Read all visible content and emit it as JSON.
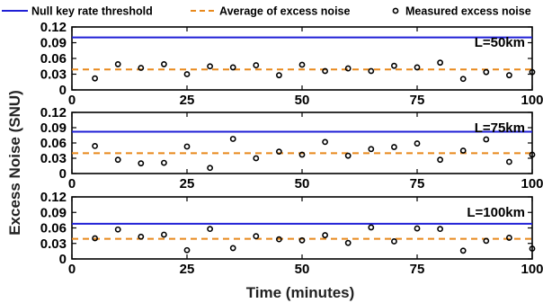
{
  "colors": {
    "threshold": "#1f1fd6",
    "average": "#e8891c",
    "point": "#000000",
    "frame": "#000000"
  },
  "chart_data": {
    "type": "scatter",
    "legend": {
      "placement": "top",
      "items": [
        {
          "label": "Null key rate threshold",
          "style": "solid-line",
          "color": "#1f1fd6"
        },
        {
          "label": "Average of excess noise",
          "style": "dashed-line",
          "color": "#e8891c"
        },
        {
          "label": "Measured excess noise",
          "style": "circle-marker",
          "color": "#000000"
        }
      ]
    },
    "xlabel": "Time (minutes)",
    "ylabel": "Excess Noise (SNU)",
    "xlim": [
      0,
      100
    ],
    "xticks": [
      0,
      25,
      50,
      75,
      100
    ],
    "panels": [
      {
        "label": "L=50km",
        "ylim": [
          0,
          0.12
        ],
        "yticks": [
          "0",
          "0.03",
          "0.06",
          "0.09",
          "0.12"
        ],
        "yticks_values": [
          0,
          0.03,
          0.06,
          0.09,
          0.12
        ],
        "threshold": 0.1,
        "average": 0.039,
        "points": [
          {
            "x": 5,
            "y": 0.022
          },
          {
            "x": 10,
            "y": 0.049
          },
          {
            "x": 15,
            "y": 0.042
          },
          {
            "x": 20,
            "y": 0.049
          },
          {
            "x": 25,
            "y": 0.03
          },
          {
            "x": 30,
            "y": 0.045
          },
          {
            "x": 35,
            "y": 0.043
          },
          {
            "x": 40,
            "y": 0.047
          },
          {
            "x": 45,
            "y": 0.028
          },
          {
            "x": 50,
            "y": 0.048
          },
          {
            "x": 55,
            "y": 0.036
          },
          {
            "x": 60,
            "y": 0.041
          },
          {
            "x": 65,
            "y": 0.036
          },
          {
            "x": 70,
            "y": 0.046
          },
          {
            "x": 75,
            "y": 0.043
          },
          {
            "x": 80,
            "y": 0.052
          },
          {
            "x": 85,
            "y": 0.021
          },
          {
            "x": 90,
            "y": 0.034
          },
          {
            "x": 95,
            "y": 0.028
          },
          {
            "x": 100,
            "y": 0.034
          }
        ]
      },
      {
        "label": "L=75km",
        "ylim": [
          0,
          0.12
        ],
        "yticks": [
          "0",
          "0.03",
          "0.06",
          "0.09",
          "0.12"
        ],
        "yticks_values": [
          0,
          0.03,
          0.06,
          0.09,
          0.12
        ],
        "threshold": 0.082,
        "average": 0.04,
        "points": [
          {
            "x": 5,
            "y": 0.054
          },
          {
            "x": 10,
            "y": 0.027
          },
          {
            "x": 15,
            "y": 0.02
          },
          {
            "x": 20,
            "y": 0.021
          },
          {
            "x": 25,
            "y": 0.053
          },
          {
            "x": 30,
            "y": 0.011
          },
          {
            "x": 35,
            "y": 0.068
          },
          {
            "x": 40,
            "y": 0.03
          },
          {
            "x": 45,
            "y": 0.043
          },
          {
            "x": 50,
            "y": 0.037
          },
          {
            "x": 55,
            "y": 0.062
          },
          {
            "x": 60,
            "y": 0.035
          },
          {
            "x": 65,
            "y": 0.048
          },
          {
            "x": 70,
            "y": 0.052
          },
          {
            "x": 75,
            "y": 0.059
          },
          {
            "x": 80,
            "y": 0.027
          },
          {
            "x": 85,
            "y": 0.045
          },
          {
            "x": 90,
            "y": 0.067
          },
          {
            "x": 95,
            "y": 0.023
          },
          {
            "x": 100,
            "y": 0.037
          }
        ]
      },
      {
        "label": "L=100km",
        "ylim": [
          0,
          0.12
        ],
        "yticks": [
          "0",
          "0.03",
          "0.06",
          "0.09",
          "0.12"
        ],
        "yticks_values": [
          0,
          0.03,
          0.06,
          0.09,
          0.12
        ],
        "threshold": 0.068,
        "average": 0.039,
        "points": [
          {
            "x": 5,
            "y": 0.04
          },
          {
            "x": 10,
            "y": 0.057
          },
          {
            "x": 15,
            "y": 0.043
          },
          {
            "x": 20,
            "y": 0.047
          },
          {
            "x": 25,
            "y": 0.017
          },
          {
            "x": 30,
            "y": 0.058
          },
          {
            "x": 35,
            "y": 0.021
          },
          {
            "x": 40,
            "y": 0.044
          },
          {
            "x": 45,
            "y": 0.038
          },
          {
            "x": 50,
            "y": 0.036
          },
          {
            "x": 55,
            "y": 0.046
          },
          {
            "x": 60,
            "y": 0.031
          },
          {
            "x": 65,
            "y": 0.061
          },
          {
            "x": 70,
            "y": 0.034
          },
          {
            "x": 75,
            "y": 0.059
          },
          {
            "x": 80,
            "y": 0.058
          },
          {
            "x": 85,
            "y": 0.016
          },
          {
            "x": 90,
            "y": 0.035
          },
          {
            "x": 95,
            "y": 0.041
          },
          {
            "x": 100,
            "y": 0.02
          }
        ]
      }
    ]
  }
}
